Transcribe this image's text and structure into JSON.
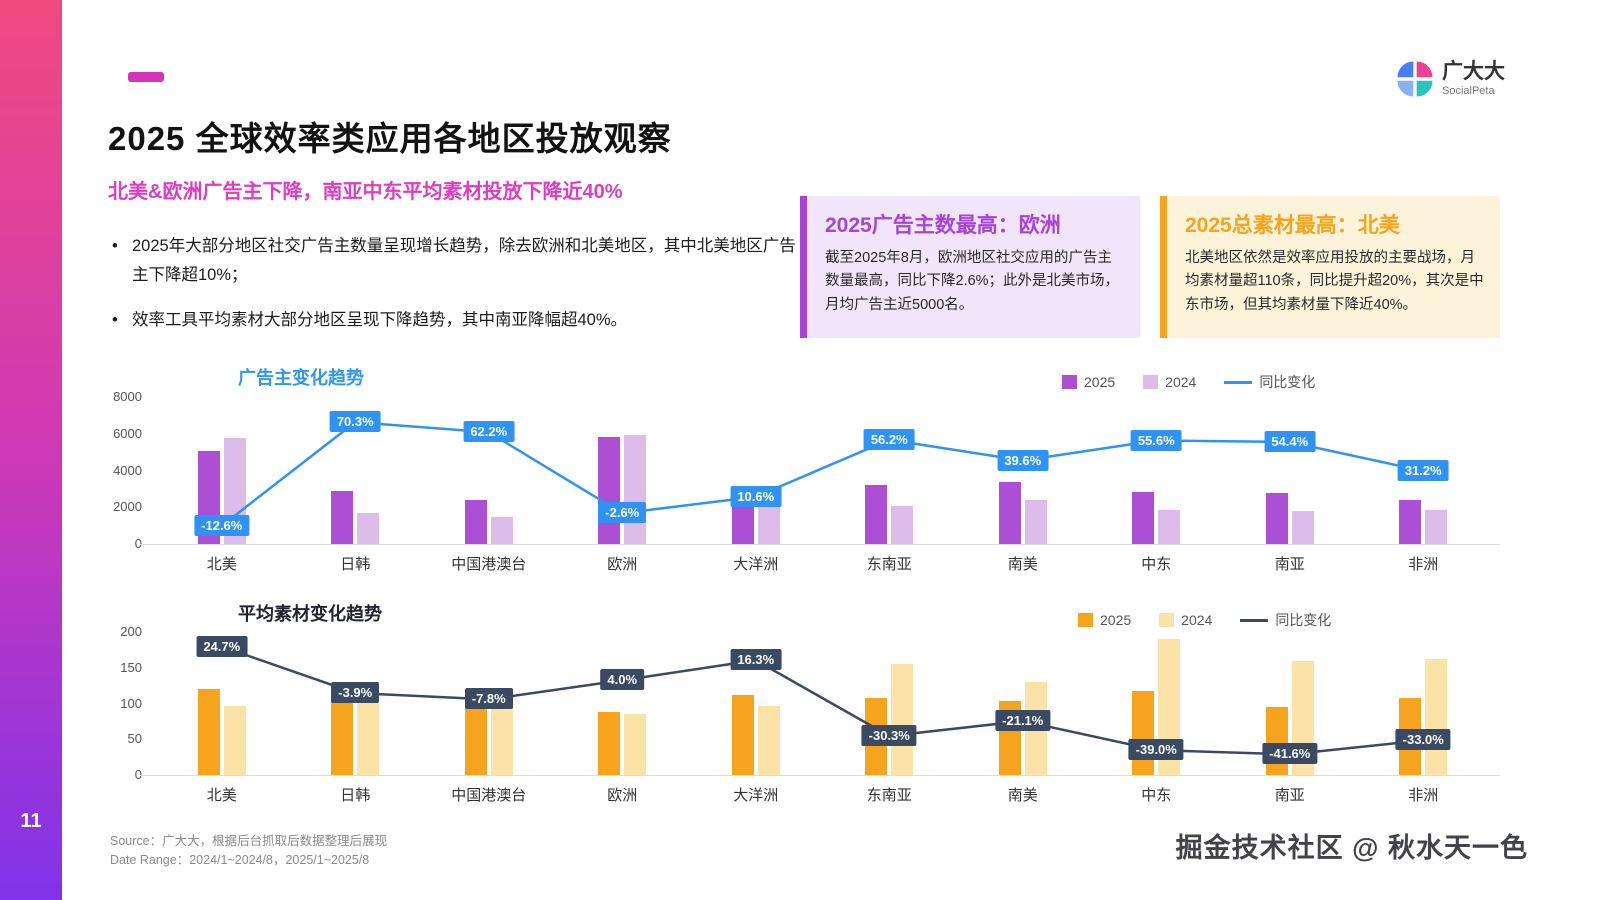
{
  "page_number": "11",
  "logo": {
    "name": "广大大",
    "subtitle": "SocialPeta"
  },
  "header": {
    "title": "2025 全球效率类应用各地区投放观察",
    "subtitle": "北美&欧洲广告主下降，南亚中东平均素材投放下降近40%",
    "bullets": [
      "2025年大部分地区社交广告主数量呈现增长趋势，除去欧洲和北美地区，其中北美地区广告主下降超10%；",
      "效率工具平均素材大部分地区呈现下降趋势，其中南亚降幅超40%。"
    ]
  },
  "callouts": [
    {
      "title": "2025广告主数最高：欧洲",
      "body": "截至2025年8月，欧洲地区社交应用的广告主数量最高，同比下降2.6%；此外是北美市场，月均广告主近5000名。",
      "accent": "#a843d8",
      "bg": "#f1e5f9"
    },
    {
      "title": "2025总素材最高：北美",
      "body": "北美地区依然是效率应用投放的主要战场，月均素材量超110条，同比提升超20%，其次是中东市场，但其均素材量下降近40%。",
      "accent": "#f6a41c",
      "bg": "#fdf3da"
    }
  ],
  "chart_data": [
    {
      "type": "bar+line",
      "title": "广告主变化趋势",
      "categories": [
        "北美",
        "日韩",
        "中国港澳台",
        "欧洲",
        "大洋洲",
        "东南亚",
        "南美",
        "中东",
        "南亚",
        "非洲"
      ],
      "ylim": [
        0,
        8000
      ],
      "y_ticks": [
        0,
        2000,
        4000,
        6000,
        8000
      ],
      "line_axis": {
        "min": -20,
        "max": 80
      },
      "legend_position": "top-right",
      "grid": false,
      "series": [
        {
          "name": "2025",
          "type": "bar",
          "color": "#ad4fd5",
          "values": [
            5050,
            2900,
            2400,
            5800,
            2600,
            3200,
            3350,
            2850,
            2800,
            2400
          ]
        },
        {
          "name": "2024",
          "type": "bar",
          "color": "#ddbcea",
          "values": [
            5780,
            1700,
            1480,
            5950,
            2350,
            2050,
            2400,
            1830,
            1815,
            1830
          ]
        },
        {
          "name": "同比变化",
          "type": "line",
          "color": "#2e93f2",
          "values": [
            -12.6,
            70.3,
            62.2,
            -2.6,
            10.6,
            56.2,
            39.6,
            55.6,
            54.4,
            31.2
          ],
          "labels": [
            "-12.6%",
            "70.3%",
            "62.2%",
            "-2.6%",
            "10.6%",
            "56.2%",
            "39.6%",
            "55.6%",
            "54.4%",
            "31.2%"
          ]
        }
      ]
    },
    {
      "type": "bar+line",
      "title": "平均素材变化趋势",
      "categories": [
        "北美",
        "日韩",
        "中国港澳台",
        "欧洲",
        "大洋洲",
        "东南亚",
        "南美",
        "中东",
        "南亚",
        "非洲"
      ],
      "ylim": [
        0,
        200
      ],
      "y_ticks": [
        0,
        50,
        100,
        150,
        200
      ],
      "line_axis": {
        "min": -50,
        "max": 30
      },
      "legend_position": "top-right",
      "grid": false,
      "series": [
        {
          "name": "2025",
          "type": "bar",
          "color": "#f6a41d",
          "values": [
            120,
            105,
            100,
            88,
            112,
            108,
            103,
            117,
            95,
            108
          ]
        },
        {
          "name": "2024",
          "type": "bar",
          "color": "#fbe2a6",
          "values": [
            97,
            110,
            110,
            85,
            97,
            155,
            130,
            190,
            160,
            162
          ]
        },
        {
          "name": "同比变化",
          "type": "line",
          "color": "#3a4a63",
          "values": [
            24.7,
            -3.9,
            -7.8,
            4.0,
            16.3,
            -30.3,
            -21.1,
            -39.0,
            -41.6,
            -33.0
          ],
          "labels": [
            "24.7%",
            "-3.9%",
            "-7.8%",
            "4.0%",
            "16.3%",
            "-30.3%",
            "-21.1%",
            "-39.0%",
            "-41.6%",
            "-33.0%"
          ]
        }
      ]
    }
  ],
  "footer": {
    "source": "Source：广大大，根据后台抓取后数据整理后展现",
    "date_range": "Date Range：2024/1~2024/8，2025/1~2025/8"
  },
  "watermark": "掘金技术社区 @ 秋水天一色"
}
